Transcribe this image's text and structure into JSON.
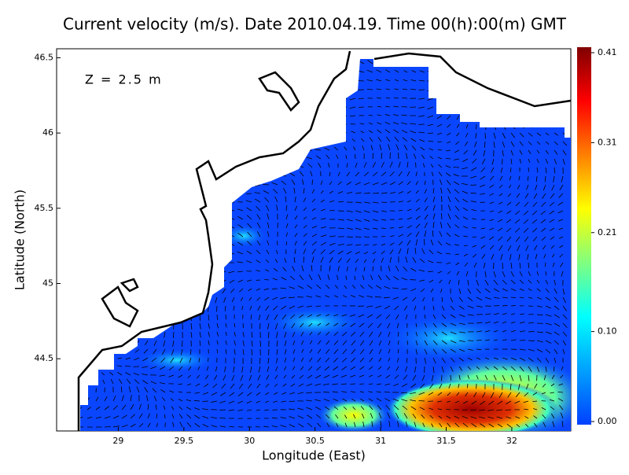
{
  "chart_data": {
    "type": "vector-map",
    "title": "Current velocity (m/s). Date 2010.04.19. Time 00(h):00(m) GMT",
    "annotation": "Z = 2.5 m",
    "x_label": "Longitude (East)",
    "y_label": "Latitude (North)",
    "xlim": [
      28.53,
      32.45
    ],
    "xticks": [
      29,
      29.5,
      30,
      30.5,
      31,
      31.5,
      32
    ],
    "ylim": [
      44.02,
      46.56
    ],
    "yticks": [
      44.5,
      45,
      45.5,
      46,
      46.5
    ],
    "colorbar": {
      "lim": [
        0,
        0.41
      ],
      "ticks": [
        {
          "value": 0,
          "label": "0.00"
        },
        {
          "value": 0.1,
          "label": "0.10"
        },
        0.21,
        0.31,
        0.41
      ],
      "colors": [
        "#0040ff",
        "#00a0ff",
        "#00ffff",
        "#80ff80",
        "#ffff00",
        "#ff8000",
        "#ff0000",
        "#800000"
      ]
    }
  }
}
